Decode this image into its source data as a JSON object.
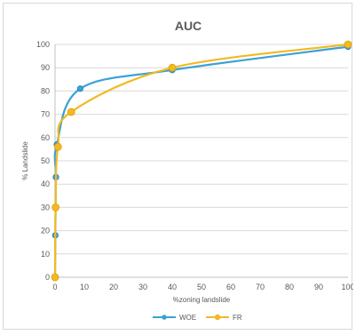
{
  "chart_data": {
    "type": "line",
    "title": "AUC",
    "xlabel": "%zoning landslide",
    "ylabel": "% Landslide",
    "xlim": [
      0,
      100
    ],
    "ylim": [
      0,
      100
    ],
    "x_ticks": [
      "0",
      "10",
      "20",
      "30",
      "40",
      "50",
      "60",
      "70",
      "80",
      "90",
      "100"
    ],
    "y_ticks": [
      "0",
      "10",
      "20",
      "30",
      "40",
      "50",
      "60",
      "70",
      "80",
      "90",
      "100"
    ],
    "grid": "horizontal",
    "legend_position": "bottom",
    "series": [
      {
        "name": "WOE",
        "color": "#3ba1d6",
        "x": [
          0,
          0.1,
          0.3,
          0.6,
          8.6,
          40,
          100
        ],
        "y": [
          0,
          18,
          43,
          57,
          81,
          89,
          99
        ]
      },
      {
        "name": "FR",
        "color": "#f2b921",
        "x": [
          0,
          0.2,
          1.0,
          5.5,
          40,
          100
        ],
        "y": [
          0,
          30,
          56,
          71,
          90,
          100
        ]
      }
    ]
  }
}
